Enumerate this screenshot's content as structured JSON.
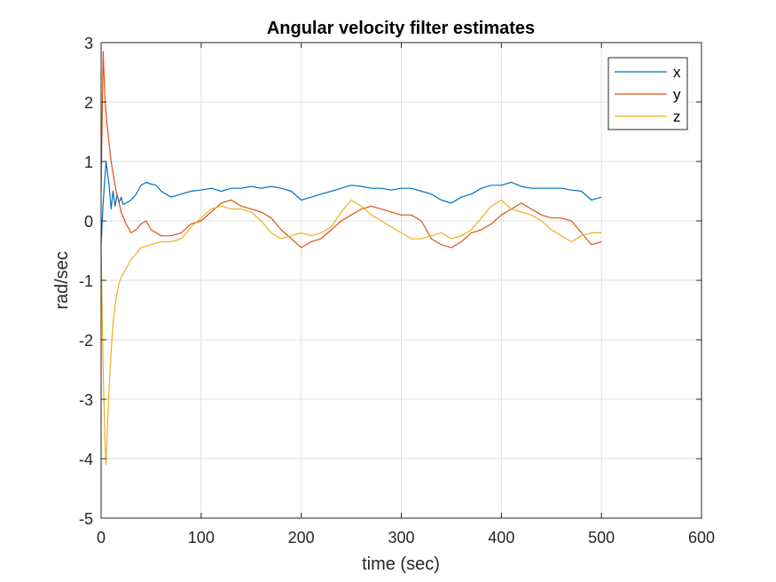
{
  "chart_data": {
    "type": "line",
    "title": "Angular velocity filter estimates",
    "xlabel": "time (sec)",
    "ylabel": "rad/sec",
    "xlim": [
      0,
      600
    ],
    "ylim": [
      -5,
      3
    ],
    "xticks": [
      0,
      100,
      200,
      300,
      400,
      500,
      600
    ],
    "yticks": [
      -5,
      -4,
      -3,
      -2,
      -1,
      0,
      1,
      2,
      3
    ],
    "grid": true,
    "legend_position": "top-right",
    "series": [
      {
        "name": "x",
        "color": "#0072BD",
        "x": [
          0,
          2,
          5,
          8,
          10,
          12,
          14,
          16,
          18,
          20,
          22,
          25,
          30,
          35,
          40,
          45,
          50,
          55,
          60,
          70,
          80,
          90,
          100,
          110,
          120,
          130,
          140,
          150,
          160,
          170,
          180,
          190,
          200,
          210,
          220,
          230,
          240,
          250,
          260,
          270,
          280,
          290,
          300,
          310,
          320,
          330,
          340,
          350,
          360,
          370,
          380,
          390,
          400,
          410,
          420,
          430,
          440,
          450,
          460,
          470,
          480,
          490,
          500
        ],
        "y": [
          -0.4,
          0.3,
          1.0,
          0.6,
          0.2,
          0.5,
          0.25,
          0.45,
          0.3,
          0.4,
          0.28,
          0.3,
          0.35,
          0.45,
          0.6,
          0.65,
          0.62,
          0.6,
          0.5,
          0.4,
          0.45,
          0.5,
          0.52,
          0.55,
          0.5,
          0.55,
          0.55,
          0.58,
          0.55,
          0.58,
          0.55,
          0.5,
          0.35,
          0.4,
          0.45,
          0.5,
          0.55,
          0.6,
          0.58,
          0.55,
          0.55,
          0.52,
          0.55,
          0.55,
          0.5,
          0.45,
          0.35,
          0.3,
          0.4,
          0.45,
          0.55,
          0.6,
          0.6,
          0.65,
          0.58,
          0.55,
          0.55,
          0.55,
          0.55,
          0.52,
          0.5,
          0.35,
          0.4
        ]
      },
      {
        "name": "y",
        "color": "#D95319",
        "x": [
          0,
          2,
          4,
          6,
          8,
          10,
          12,
          15,
          18,
          20,
          25,
          30,
          35,
          40,
          45,
          50,
          55,
          60,
          70,
          80,
          90,
          100,
          110,
          120,
          130,
          140,
          150,
          160,
          170,
          180,
          190,
          200,
          210,
          220,
          230,
          240,
          250,
          260,
          270,
          280,
          290,
          300,
          310,
          320,
          330,
          340,
          350,
          360,
          370,
          380,
          390,
          400,
          410,
          420,
          430,
          440,
          450,
          460,
          470,
          480,
          490,
          500
        ],
        "y": [
          0.5,
          2.85,
          2.0,
          1.6,
          1.3,
          1.0,
          0.8,
          0.5,
          0.3,
          0.15,
          -0.05,
          -0.2,
          -0.15,
          -0.05,
          0.0,
          -0.15,
          -0.2,
          -0.25,
          -0.25,
          -0.2,
          -0.05,
          0.0,
          0.15,
          0.3,
          0.35,
          0.25,
          0.2,
          0.15,
          0.05,
          -0.15,
          -0.3,
          -0.45,
          -0.35,
          -0.3,
          -0.15,
          0.0,
          0.1,
          0.2,
          0.25,
          0.2,
          0.15,
          0.1,
          0.1,
          0.0,
          -0.3,
          -0.4,
          -0.45,
          -0.35,
          -0.2,
          -0.15,
          -0.05,
          0.1,
          0.2,
          0.3,
          0.2,
          0.1,
          0.05,
          0.05,
          0.0,
          -0.2,
          -0.4,
          -0.35
        ]
      },
      {
        "name": "z",
        "color": "#EDB120",
        "x": [
          0,
          2,
          4,
          5,
          6,
          8,
          10,
          12,
          15,
          18,
          20,
          25,
          30,
          35,
          40,
          50,
          60,
          70,
          80,
          90,
          100,
          110,
          120,
          130,
          140,
          150,
          160,
          170,
          180,
          190,
          200,
          210,
          220,
          230,
          240,
          250,
          260,
          270,
          280,
          290,
          300,
          310,
          320,
          330,
          340,
          350,
          360,
          370,
          380,
          390,
          400,
          410,
          420,
          430,
          440,
          450,
          460,
          470,
          480,
          490,
          500
        ],
        "y": [
          -0.4,
          -2.5,
          -3.8,
          -4.1,
          -3.6,
          -2.8,
          -2.2,
          -1.7,
          -1.3,
          -1.05,
          -0.95,
          -0.8,
          -0.65,
          -0.55,
          -0.45,
          -0.4,
          -0.35,
          -0.35,
          -0.3,
          -0.1,
          0.05,
          0.2,
          0.25,
          0.2,
          0.2,
          0.15,
          0.0,
          -0.2,
          -0.3,
          -0.25,
          -0.2,
          -0.25,
          -0.2,
          -0.1,
          0.15,
          0.35,
          0.25,
          0.1,
          0.0,
          -0.1,
          -0.2,
          -0.3,
          -0.3,
          -0.25,
          -0.2,
          -0.3,
          -0.25,
          -0.15,
          0.05,
          0.25,
          0.35,
          0.2,
          0.15,
          0.1,
          0.0,
          -0.15,
          -0.25,
          -0.35,
          -0.25,
          -0.2,
          -0.2
        ]
      }
    ]
  }
}
